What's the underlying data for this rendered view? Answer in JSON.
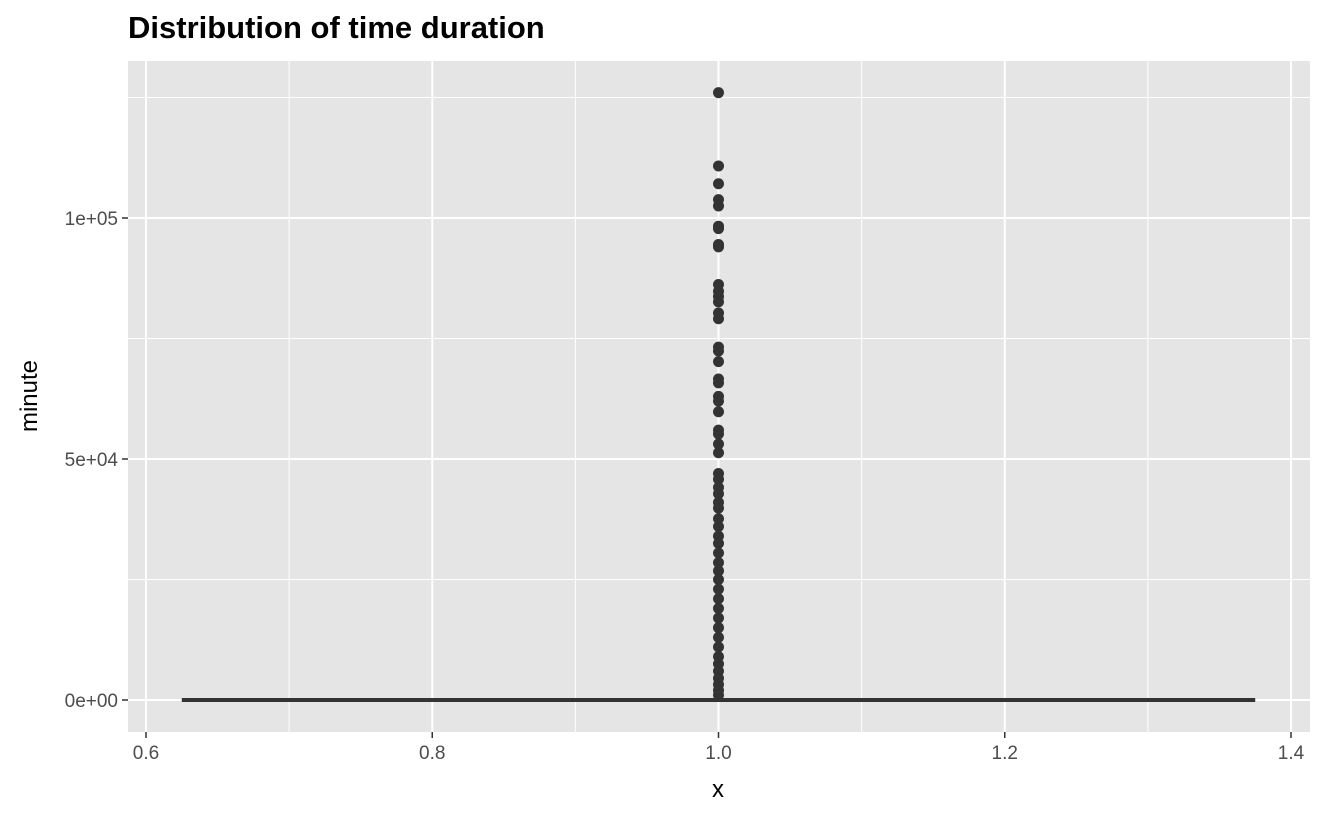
{
  "chart_data": {
    "type": "boxplot",
    "title": "Distribution of time duration",
    "xlabel": "x",
    "ylabel": "minute",
    "xlim": [
      0.6,
      1.4
    ],
    "ylim": [
      0,
      125000
    ],
    "x_ticks": [
      0.6,
      0.8,
      1.0,
      1.2,
      1.4
    ],
    "x_tick_labels": [
      "0.6",
      "0.8",
      "1.0",
      "1.2",
      "1.4"
    ],
    "y_ticks": [
      0,
      50000,
      100000
    ],
    "y_tick_labels": [
      "0e+00",
      "5e+04",
      "1e+05"
    ],
    "grid": true,
    "panel_background": "#e5e5e5",
    "grid_color": "#ffffff",
    "point_color": "#333333",
    "series": [
      {
        "x": 1.0,
        "box_xlim": [
          0.625,
          1.375
        ],
        "q1": 0,
        "median": 0,
        "q3": 0,
        "whisker_low": 0,
        "whisker_high": 0,
        "outliers": [
          126000,
          110800,
          107100,
          103800,
          102500,
          98300,
          97800,
          94500,
          94000,
          86200,
          84800,
          83700,
          82600,
          80300,
          79100,
          73200,
          72400,
          70200,
          66600,
          65800,
          63000,
          62000,
          59800,
          56000,
          55200,
          53100,
          51300,
          47000,
          45800,
          44100,
          42800,
          41000,
          39800,
          37600,
          36000,
          34000,
          32500,
          30500,
          28500,
          26800,
          25000,
          23000,
          21000,
          19000,
          17000,
          15000,
          13000,
          11000,
          9000,
          7500,
          6000,
          4500,
          3200,
          2000,
          1000
        ]
      }
    ]
  }
}
